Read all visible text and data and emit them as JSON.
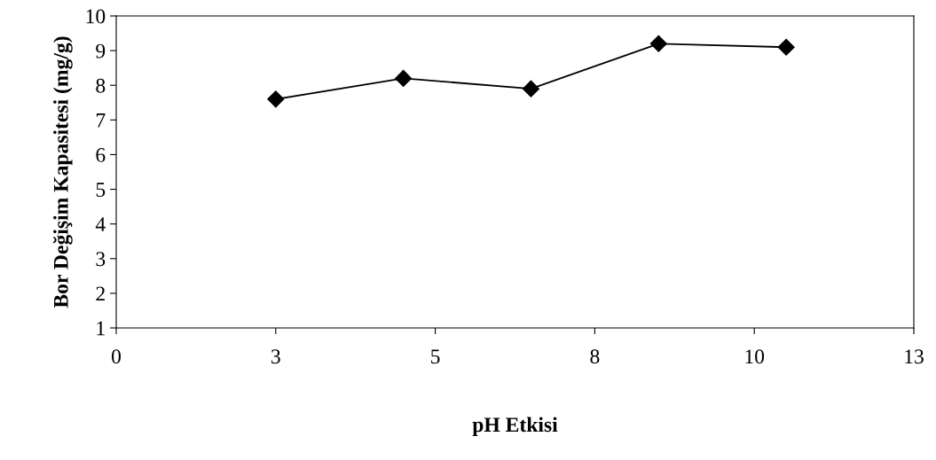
{
  "chart_data": {
    "type": "line",
    "xlabel": "pH Etkisi",
    "ylabel": "Bor Değişim Kapasitesi (mg/g)",
    "x": [
      2.5,
      4.5,
      6.5,
      8.5,
      10.5
    ],
    "series": [
      {
        "color": "#000000",
        "values": [
          7.6,
          8.2,
          7.9,
          9.2,
          9.1
        ]
      }
    ],
    "xlim": [
      0,
      12.5
    ],
    "xticks": [
      0,
      {
        "value": 2.5,
        "label": "3"
      },
      5,
      {
        "value": 7.5,
        "label": "8"
      },
      10,
      {
        "value": 12.5,
        "label": "13"
      }
    ],
    "ylim": [
      1,
      10
    ],
    "yticks": [
      1,
      2,
      3,
      4,
      5,
      6,
      7,
      8,
      9,
      10
    ],
    "grid": false,
    "legend": false,
    "marker": "diamond",
    "line_style": "solid"
  }
}
